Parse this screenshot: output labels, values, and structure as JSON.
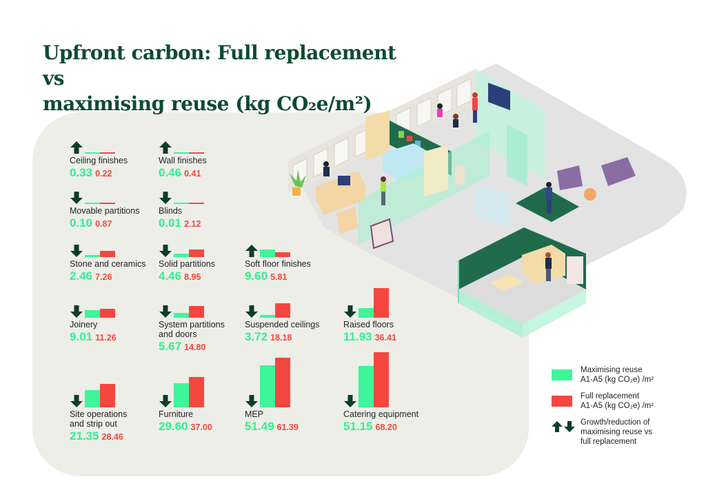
{
  "title_line1": "Upfront carbon: Full replacement vs",
  "title_line2": "maximising reuse (kg CO₂e/m²)",
  "colors": {
    "reuse": "#3ff59a",
    "full": "#f5473f",
    "arrow": "#0b3d2a",
    "title": "#0f4a33",
    "panel": "#eeeee8"
  },
  "chart_data": {
    "type": "bar",
    "title": "Upfront carbon: Full replacement vs maximising reuse (kg CO₂e/m²)",
    "series_names": [
      "Maximising reuse",
      "Full replacement"
    ],
    "unit": "kg CO₂e/m²",
    "categories": [
      {
        "label": "Ceiling finishes",
        "reuse": 0.33,
        "full": 0.22,
        "reuse_text": "0.33",
        "full_text": "0.22",
        "direction": "up"
      },
      {
        "label": "Wall finishes",
        "reuse": 0.46,
        "full": 0.41,
        "reuse_text": "0.46",
        "full_text": "0.41",
        "direction": "up"
      },
      {
        "label": "Movable partitions",
        "reuse": 0.1,
        "full": 0.87,
        "reuse_text": "0.10",
        "full_text": "0.87",
        "direction": "down"
      },
      {
        "label": "Blinds",
        "reuse": 0.01,
        "full": 2.12,
        "reuse_text": "0.01",
        "full_text": "2.12",
        "direction": "down"
      },
      {
        "label": "Stone and ceramics",
        "reuse": 2.46,
        "full": 7.26,
        "reuse_text": "2.46",
        "full_text": "7.26",
        "direction": "down"
      },
      {
        "label": "Solid partitions",
        "reuse": 4.46,
        "full": 8.95,
        "reuse_text": "4.46",
        "full_text": "8.95",
        "direction": "down"
      },
      {
        "label": "Soft floor finishes",
        "reuse": 9.6,
        "full": 5.81,
        "reuse_text": "9.60",
        "full_text": "5.81",
        "direction": "up"
      },
      {
        "label": "Joinery",
        "reuse": 9.01,
        "full": 11.26,
        "reuse_text": "9.01",
        "full_text": "11.26",
        "direction": "down"
      },
      {
        "label": "System partitions\nand doors",
        "reuse": 5.67,
        "full": 14.8,
        "reuse_text": "5.67",
        "full_text": "14.80",
        "direction": "down"
      },
      {
        "label": "Suspended ceilings",
        "reuse": 3.72,
        "full": 18.18,
        "reuse_text": "3.72",
        "full_text": "18.18",
        "direction": "down"
      },
      {
        "label": "Raised floors",
        "reuse": 11.93,
        "full": 36.41,
        "reuse_text": "11.93",
        "full_text": "36.41",
        "direction": "down"
      },
      {
        "label": "Site operations\nand strip out",
        "reuse": 21.35,
        "full": 28.46,
        "reuse_text": "21.35",
        "full_text": "28.46",
        "direction": "down"
      },
      {
        "label": "Furniture",
        "reuse": 29.6,
        "full": 37.0,
        "reuse_text": "29.60",
        "full_text": "37.00",
        "direction": "down"
      },
      {
        "label": "MEP",
        "reuse": 51.49,
        "full": 61.39,
        "reuse_text": "51.49",
        "full_text": "61.39",
        "direction": "down"
      },
      {
        "label": "Catering equipment",
        "reuse": 51.15,
        "full": 68.2,
        "reuse_text": "51.15",
        "full_text": "68.20",
        "direction": "down"
      }
    ]
  },
  "legend": {
    "reuse_line1": "Maximising reuse",
    "reuse_line2": "A1-A5 (kg CO₂e) /m²",
    "full_line1": "Full replacement",
    "full_line2": "A1-A5 (kg CO₂e) /m²",
    "arrow_line1": "Growth/reduction of",
    "arrow_line2": "maximising reuse vs",
    "arrow_line3": "full replacement"
  }
}
